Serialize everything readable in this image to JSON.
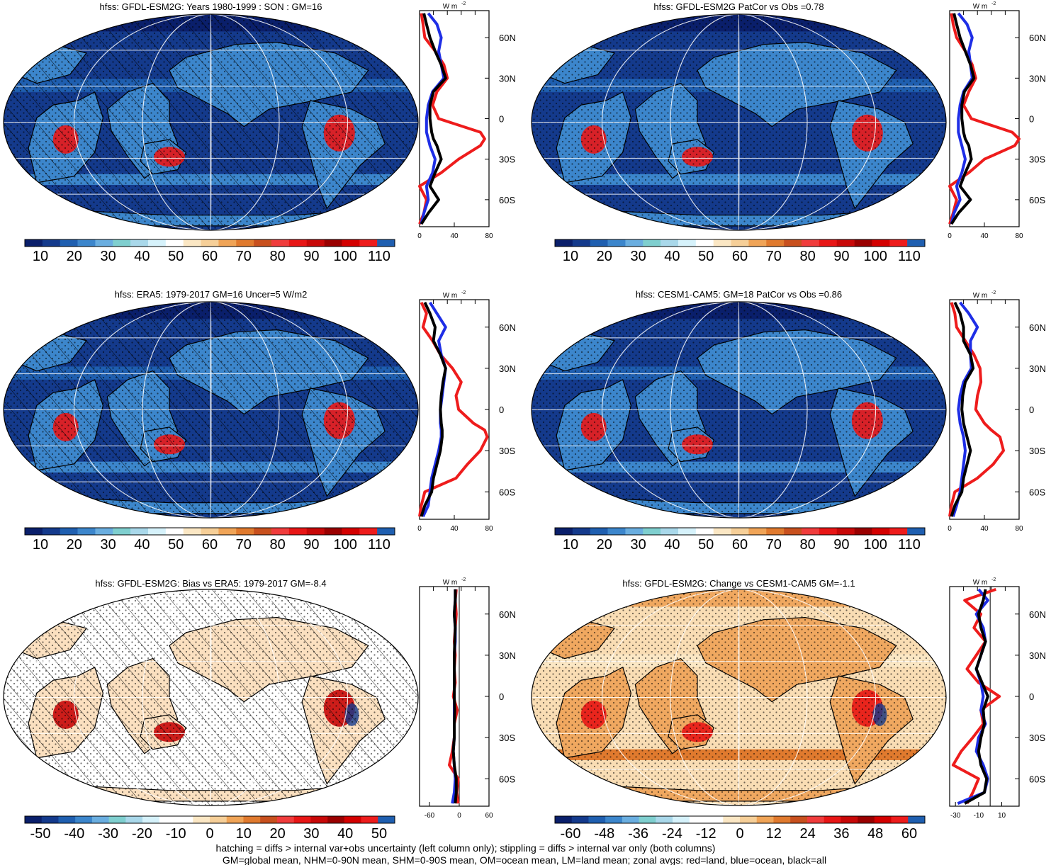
{
  "palette": {
    "seq": [
      "#0a1f6b",
      "#143a8c",
      "#1f5fb0",
      "#3c86cc",
      "#6aaee0",
      "#7fcfcf",
      "#a9d8ea",
      "#d6f2fb",
      "#ffffff",
      "#fbe7c4",
      "#f6cf98",
      "#f0a457",
      "#e07a2e",
      "#c8501e",
      "#f03c3c",
      "#e81616",
      "#c80808",
      "#9a0000",
      "#d40000",
      "#ee1c1c",
      "#1f5fb0"
    ],
    "div": [
      "#0a1f6b",
      "#143a8c",
      "#1f5fb0",
      "#3c86cc",
      "#6aaee0",
      "#7fcfcf",
      "#a9d8ea",
      "#d6f2fb",
      "#ffffff",
      "#ffffff",
      "#fbe7c4",
      "#f6cf98",
      "#f0a457",
      "#e07a2e",
      "#c8501e",
      "#f03c3c",
      "#e81616",
      "#c80808",
      "#9a0000",
      "#d40000",
      "#ee1c1c",
      "#1f5fb0"
    ],
    "land": "#ee1c1c",
    "ocean": "#1e2ee6",
    "all": "#000000"
  },
  "profile_unit": "W m",
  "profile_unit_sup": "-2",
  "lat_labels": [
    "60N",
    "30N",
    "0",
    "30S",
    "60S"
  ],
  "panels": [
    {
      "title": "hfss: GFDL-ESM2G: Years 1980-1999 : SON : GM=16",
      "bar_ticks": [
        "10",
        "20",
        "30",
        "40",
        "50",
        "60",
        "70",
        "80",
        "90",
        "100",
        "110"
      ],
      "bar_kind": "seq",
      "profile_ticks": [
        "0",
        "40",
        "80"
      ],
      "map": "abs_hatch"
    },
    {
      "title": "hfss: GFDL-ESM2G PatCor vs Obs =0.78",
      "bar_ticks": [
        "10",
        "20",
        "30",
        "40",
        "50",
        "60",
        "70",
        "80",
        "90",
        "100",
        "110"
      ],
      "bar_kind": "seq",
      "profile_ticks": [
        "0",
        "40",
        "80"
      ],
      "map": "abs_stip"
    },
    {
      "title": "hfss: ERA5: 1979-2017 GM=16 Uncer=5 W/m2",
      "bar_ticks": [
        "10",
        "20",
        "30",
        "40",
        "50",
        "60",
        "70",
        "80",
        "90",
        "100",
        "110"
      ],
      "bar_kind": "seq",
      "profile_ticks": [
        "0",
        "40",
        "80"
      ],
      "map": "abs_hatch"
    },
    {
      "title": "hfss: CESM1-CAM5: GM=18 PatCor vs Obs =0.86",
      "bar_ticks": [
        "10",
        "20",
        "30",
        "40",
        "50",
        "60",
        "70",
        "80",
        "90",
        "100",
        "110"
      ],
      "bar_kind": "seq",
      "profile_ticks": [
        "0",
        "40",
        "80"
      ],
      "map": "abs_stip"
    },
    {
      "title": "hfss: GFDL-ESM2G: Bias vs ERA5: 1979-2017  GM=-8.4",
      "bar_ticks": [
        "-50",
        "-40",
        "-30",
        "-20",
        "-10",
        "0",
        "10",
        "20",
        "30",
        "40",
        "50"
      ],
      "bar_kind": "div",
      "profile_ticks": [
        "-60",
        "0",
        "60"
      ],
      "map": "bias"
    },
    {
      "title": "hfss: GFDL-ESM2G: Change vs CESM1-CAM5 GM=-1.1",
      "bar_ticks": [
        "-60",
        "-48",
        "-36",
        "-24",
        "-12",
        "0",
        "12",
        "24",
        "36",
        "48",
        "60"
      ],
      "bar_kind": "div",
      "profile_ticks": [
        "-30",
        "-10",
        "10"
      ],
      "map": "change"
    }
  ],
  "chart_data": [
    {
      "type": "line",
      "title": "hfss: GFDL-ESM2G: Years 1980-1999 : SON : GM=16",
      "xlabel": "W m-2",
      "xlim": [
        0,
        80
      ],
      "ylim": [
        -80,
        80
      ],
      "lat": [
        -78,
        -70,
        -60,
        -50,
        -40,
        -30,
        -20,
        -15,
        -10,
        0,
        10,
        20,
        30,
        40,
        50,
        60,
        70,
        78
      ],
      "series": [
        {
          "name": "red=land",
          "values": [
            0,
            5,
            8,
            0,
            25,
            45,
            70,
            75,
            70,
            22,
            15,
            20,
            32,
            28,
            18,
            6,
            4,
            2
          ]
        },
        {
          "name": "blue=ocean",
          "values": [
            2,
            5,
            10,
            8,
            15,
            18,
            12,
            10,
            8,
            8,
            10,
            15,
            28,
            25,
            22,
            25,
            20,
            10
          ]
        },
        {
          "name": "black=all",
          "values": [
            2,
            10,
            22,
            12,
            18,
            25,
            20,
            16,
            14,
            12,
            12,
            16,
            30,
            25,
            18,
            12,
            8,
            5
          ]
        }
      ]
    },
    {
      "type": "line",
      "title": "hfss: GFDL-ESM2G PatCor vs Obs =0.78",
      "xlabel": "W m-2",
      "xlim": [
        0,
        80
      ],
      "ylim": [
        -80,
        80
      ],
      "lat": [
        -78,
        -70,
        -60,
        -50,
        -40,
        -30,
        -20,
        -15,
        -10,
        0,
        10,
        20,
        30,
        40,
        50,
        60,
        70,
        78
      ],
      "series": [
        {
          "name": "red=land",
          "values": [
            0,
            4,
            8,
            0,
            22,
            40,
            75,
            80,
            72,
            25,
            16,
            22,
            30,
            26,
            18,
            8,
            4,
            2
          ]
        },
        {
          "name": "blue=ocean",
          "values": [
            2,
            5,
            12,
            8,
            14,
            18,
            14,
            12,
            10,
            10,
            12,
            16,
            26,
            24,
            22,
            26,
            20,
            10
          ]
        },
        {
          "name": "black=all",
          "values": [
            2,
            10,
            24,
            12,
            18,
            25,
            22,
            18,
            16,
            14,
            14,
            17,
            28,
            24,
            18,
            12,
            8,
            5
          ]
        }
      ]
    },
    {
      "type": "line",
      "title": "hfss: ERA5: 1979-2017 GM=16 Uncer=5 W/m2",
      "xlabel": "W m-2",
      "xlim": [
        0,
        80
      ],
      "ylim": [
        -80,
        80
      ],
      "lat": [
        -78,
        -70,
        -60,
        -50,
        -40,
        -30,
        -20,
        -15,
        -10,
        0,
        10,
        20,
        30,
        40,
        50,
        60,
        70,
        78
      ],
      "series": [
        {
          "name": "red=land",
          "values": [
            0,
            2,
            6,
            42,
            55,
            70,
            78,
            75,
            62,
            45,
            42,
            48,
            38,
            24,
            15,
            4,
            8,
            2
          ]
        },
        {
          "name": "blue=ocean",
          "values": [
            4,
            10,
            12,
            14,
            18,
            22,
            25,
            25,
            24,
            24,
            26,
            28,
            30,
            25,
            22,
            30,
            20,
            12
          ]
        },
        {
          "name": "black=all",
          "values": [
            2,
            6,
            14,
            16,
            20,
            24,
            26,
            26,
            25,
            24,
            25,
            27,
            30,
            24,
            16,
            18,
            12,
            6
          ]
        }
      ]
    },
    {
      "type": "line",
      "title": "hfss: CESM1-CAM5: GM=18 PatCor vs Obs =0.86",
      "xlabel": "W m-2",
      "xlim": [
        0,
        80
      ],
      "ylim": [
        -80,
        80
      ],
      "lat": [
        -78,
        -70,
        -60,
        -50,
        -40,
        -30,
        -20,
        -15,
        -10,
        0,
        10,
        20,
        30,
        40,
        50,
        60,
        70,
        78
      ],
      "series": [
        {
          "name": "red=land",
          "values": [
            0,
            2,
            6,
            32,
            50,
            62,
            58,
            48,
            40,
            30,
            32,
            36,
            35,
            28,
            18,
            8,
            6,
            2
          ]
        },
        {
          "name": "blue=ocean",
          "values": [
            4,
            8,
            12,
            14,
            16,
            18,
            16,
            14,
            12,
            10,
            12,
            16,
            25,
            24,
            24,
            32,
            22,
            12
          ]
        },
        {
          "name": "black=all",
          "values": [
            2,
            6,
            14,
            16,
            20,
            24,
            20,
            18,
            16,
            14,
            15,
            18,
            27,
            24,
            16,
            16,
            12,
            6
          ]
        }
      ]
    },
    {
      "type": "line",
      "title": "hfss: GFDL-ESM2G: Bias vs ERA5: 1979-2017  GM=-8.4",
      "xlabel": "W m-2",
      "xlim": [
        -80,
        60
      ],
      "ylim": [
        -80,
        80
      ],
      "lat": [
        -78,
        -70,
        -60,
        -50,
        -40,
        -30,
        -20,
        -10,
        0,
        10,
        20,
        30,
        40,
        50,
        60,
        70,
        78
      ],
      "series": [
        {
          "name": "red=land",
          "values": [
            -2,
            -5,
            -2,
            -20,
            -14,
            -10,
            -10,
            -4,
            -12,
            -8,
            -10,
            -8,
            -10,
            -8,
            -6,
            -8,
            -6
          ]
        },
        {
          "name": "blue=ocean",
          "values": [
            -14,
            -10,
            -8,
            -10,
            -12,
            -10,
            -10,
            -10,
            -10,
            -10,
            -10,
            -10,
            -8,
            -8,
            -10,
            -8,
            -8
          ]
        },
        {
          "name": "black=all",
          "values": [
            -8,
            -6,
            -6,
            -10,
            -12,
            -10,
            -10,
            -9,
            -10,
            -10,
            -10,
            -10,
            -9,
            -8,
            -10,
            -8,
            -8
          ]
        }
      ]
    },
    {
      "type": "line",
      "title": "hfss: GFDL-ESM2G: Change vs CESM1-CAM5 GM=-1.1",
      "xlabel": "W m-2",
      "xlim": [
        -35,
        25
      ],
      "ylim": [
        -80,
        80
      ],
      "lat": [
        -78,
        -70,
        -60,
        -50,
        -40,
        -30,
        -20,
        -10,
        0,
        10,
        20,
        30,
        40,
        50,
        60,
        70,
        78
      ],
      "series": [
        {
          "name": "red=land",
          "values": [
            -20,
            -15,
            -10,
            -32,
            -25,
            -15,
            -6,
            -8,
            8,
            -10,
            -20,
            -12,
            -4,
            -14,
            -8,
            -22,
            5
          ]
        },
        {
          "name": "blue=ocean",
          "values": [
            -28,
            -5,
            -2,
            -6,
            -12,
            -10,
            -4,
            -8,
            -6,
            -8,
            -12,
            -8,
            -4,
            -6,
            -12,
            -2,
            -10
          ]
        },
        {
          "name": "black=all",
          "values": [
            -22,
            -5,
            -3,
            -8,
            -10,
            -8,
            -5,
            -6,
            -2,
            -7,
            -12,
            -8,
            -4,
            -8,
            -10,
            -6,
            -4
          ]
        }
      ]
    }
  ],
  "footer": {
    "line1": "hatching = diffs > internal var+obs uncertainty (left column only); stippling = diffs > internal var only (both columns)",
    "line2": "GM=global mean, NHM=0-90N mean, SHM=0-90S mean, OM=ocean mean, LM=land mean; zonal avgs: red=land, blue=ocean, black=all"
  }
}
